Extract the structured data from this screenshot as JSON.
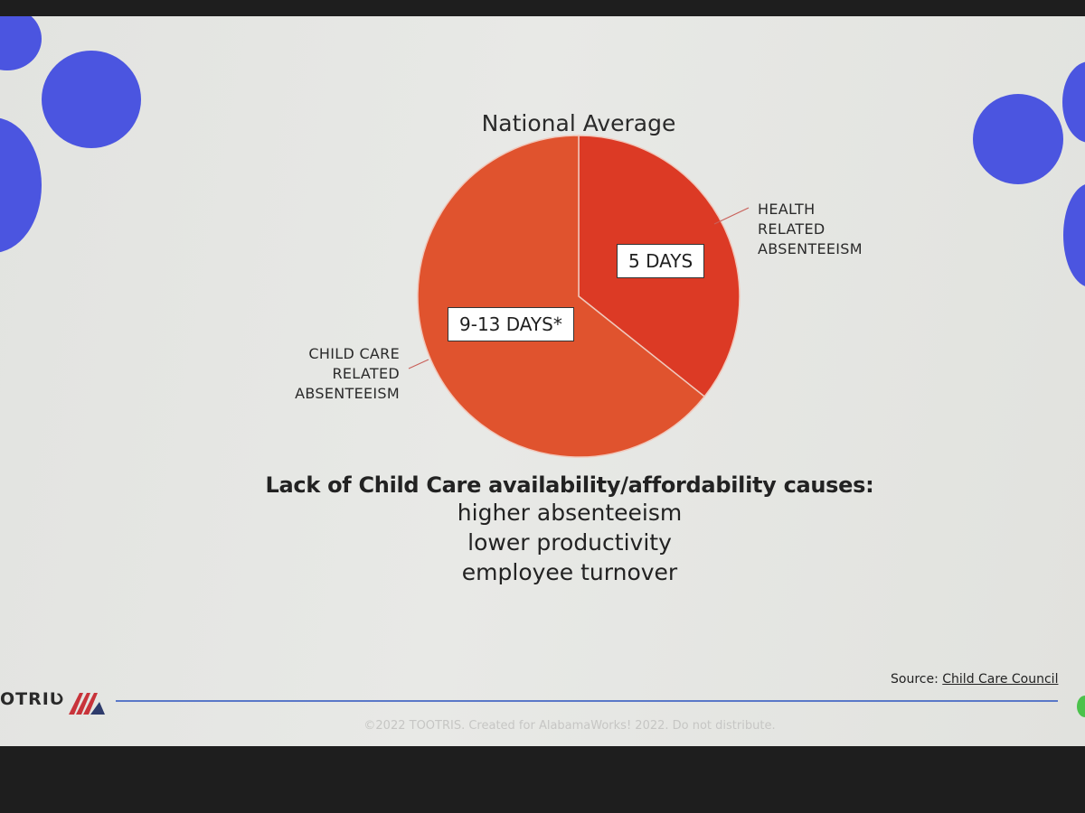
{
  "chart_data": {
    "type": "pie",
    "title": "National Average",
    "slices": [
      {
        "label": "HEALTH RELATED ABSENTEEISM",
        "value_label": "5 DAYS",
        "value": 5,
        "color": "#dc3a25"
      },
      {
        "label": "CHILD CARE RELATED ABSENTEEISM",
        "value_label": "9-13 DAYS*",
        "value": 9,
        "color": "#e0532e"
      }
    ],
    "callouts": {
      "health": [
        "HEALTH",
        "RELATED",
        "ABSENTEEISM"
      ],
      "childcare": [
        "CHILD CARE",
        "RELATED",
        "ABSENTEEISM"
      ]
    }
  },
  "statement": {
    "head": "Lack of Child Care availability/affordability",
    "head_tail": " causes:",
    "lines": [
      "higher absenteeism",
      "lower productivity",
      "employee turnover"
    ]
  },
  "source": {
    "prefix": "Source: ",
    "link": "Child Care Council"
  },
  "brand": "OTRIƲ",
  "footer": "©2022 TOOTRIS. Created for AlabamaWorks! 2022. Do not distribute.",
  "colors": {
    "accent_dots": "#4b55e0",
    "rule": "#5a78c8",
    "pie_health": "#dc3a25",
    "pie_childcare": "#e0532e"
  }
}
